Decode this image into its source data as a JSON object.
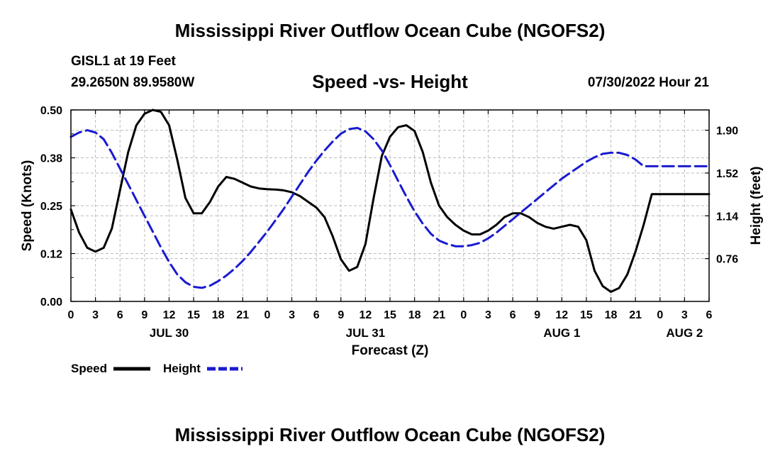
{
  "header": {
    "title": "Mississippi River Outflow Ocean Cube (NGOFS2)",
    "station": "GISL1 at 19 Feet",
    "coords": "29.2650N  89.9580W",
    "chart_title": "Speed -vs- Height",
    "datetime": "07/30/2022 Hour 21"
  },
  "footer": {
    "title": "Mississippi River Outflow Ocean Cube (NGOFS2)"
  },
  "colors": {
    "speed": "#000000",
    "height": "#1a1ad0",
    "grid": "#bbbbbb"
  },
  "chart_data": {
    "type": "line",
    "title": "Speed -vs- Height",
    "xlabel": "Forecast (Z)",
    "ylabel": "Speed (Knots)",
    "y2label": "Height (feet)",
    "x_unit": "hours since Jul 30 00Z",
    "xlim": [
      0,
      78
    ],
    "ylim": [
      0.0,
      0.5
    ],
    "y2lim": [
      0.38,
      2.08
    ],
    "xticks": [
      0,
      3,
      6,
      9,
      12,
      15,
      18,
      21,
      24,
      27,
      30,
      33,
      36,
      39,
      42,
      45,
      48,
      51,
      54,
      57,
      60,
      63,
      66,
      69,
      72,
      75,
      78
    ],
    "xtick_labels": [
      "0",
      "3",
      "6",
      "9",
      "12",
      "15",
      "18",
      "21",
      "0",
      "3",
      "6",
      "9",
      "12",
      "15",
      "18",
      "21",
      "0",
      "3",
      "6",
      "9",
      "12",
      "15",
      "18",
      "21",
      "0",
      "3",
      "6"
    ],
    "yticks": [
      0.0,
      0.125,
      0.25,
      0.375,
      0.5
    ],
    "ytick_labels": [
      "0.00",
      "0.12",
      "0.25",
      "0.38",
      "0.50"
    ],
    "y2ticks": [
      0.76,
      1.14,
      1.52,
      1.9
    ],
    "y2tick_labels": [
      "0.76",
      "1.14",
      "1.52",
      "1.90"
    ],
    "day_labels": [
      {
        "x": 12,
        "label": "JUL 30"
      },
      {
        "x": 36,
        "label": "JUL 31"
      },
      {
        "x": 60,
        "label": "AUG 1"
      },
      {
        "x": 75,
        "label": "AUG 2"
      }
    ],
    "legend": [
      "Speed",
      "Height"
    ],
    "series": [
      {
        "name": "Speed",
        "axis": "left",
        "style": "solid",
        "x": [
          0,
          1,
          2,
          3,
          4,
          5,
          6,
          7,
          8,
          9,
          10,
          11,
          12,
          13,
          14,
          15,
          16,
          17,
          18,
          19,
          20,
          21,
          22,
          23,
          24,
          25,
          26,
          27,
          28,
          29,
          30,
          31,
          32,
          33,
          34,
          35,
          36,
          37,
          38,
          39,
          40,
          41,
          42,
          43,
          44,
          45,
          46,
          47,
          48,
          49,
          50,
          51,
          52,
          53,
          54,
          55,
          56,
          57,
          58,
          59,
          60,
          61,
          62,
          63,
          64,
          65,
          66,
          67,
          68,
          69,
          70,
          71,
          72,
          73,
          74,
          75,
          76,
          77,
          78
        ],
        "values": [
          0.24,
          0.18,
          0.14,
          0.13,
          0.14,
          0.19,
          0.29,
          0.39,
          0.46,
          0.49,
          0.5,
          0.495,
          0.46,
          0.37,
          0.27,
          0.23,
          0.23,
          0.26,
          0.3,
          0.325,
          0.32,
          0.31,
          0.3,
          0.295,
          0.293,
          0.292,
          0.29,
          0.285,
          0.275,
          0.26,
          0.245,
          0.22,
          0.17,
          0.11,
          0.08,
          0.09,
          0.15,
          0.27,
          0.38,
          0.43,
          0.455,
          0.46,
          0.445,
          0.39,
          0.31,
          0.25,
          0.22,
          0.2,
          0.185,
          0.175,
          0.175,
          0.185,
          0.2,
          0.22,
          0.23,
          0.23,
          0.22,
          0.205,
          0.195,
          0.19,
          0.195,
          0.2,
          0.195,
          0.16,
          0.08,
          0.04,
          0.025,
          0.035,
          0.07,
          0.13,
          0.2,
          0.28,
          0.28,
          0.28,
          0.28,
          0.28,
          0.28,
          0.28,
          0.28
        ]
      },
      {
        "name": "Height",
        "axis": "right",
        "style": "dashed",
        "x": [
          0,
          1,
          2,
          3,
          4,
          5,
          6,
          7,
          8,
          9,
          10,
          11,
          12,
          13,
          14,
          15,
          16,
          17,
          18,
          19,
          20,
          21,
          22,
          23,
          24,
          25,
          26,
          27,
          28,
          29,
          30,
          31,
          32,
          33,
          34,
          35,
          36,
          37,
          38,
          39,
          40,
          41,
          42,
          43,
          44,
          45,
          46,
          47,
          48,
          49,
          50,
          51,
          52,
          53,
          54,
          55,
          56,
          57,
          58,
          59,
          60,
          61,
          62,
          63,
          64,
          65,
          66,
          67,
          68,
          69,
          70,
          71,
          72,
          73,
          74,
          75,
          76,
          77,
          78
        ],
        "values": [
          1.84,
          1.88,
          1.9,
          1.88,
          1.82,
          1.7,
          1.56,
          1.42,
          1.28,
          1.14,
          1.0,
          0.86,
          0.73,
          0.62,
          0.55,
          0.51,
          0.5,
          0.52,
          0.56,
          0.61,
          0.67,
          0.74,
          0.82,
          0.91,
          1.0,
          1.1,
          1.2,
          1.31,
          1.42,
          1.53,
          1.63,
          1.72,
          1.8,
          1.87,
          1.91,
          1.92,
          1.89,
          1.82,
          1.72,
          1.59,
          1.45,
          1.31,
          1.18,
          1.07,
          0.98,
          0.92,
          0.89,
          0.87,
          0.87,
          0.88,
          0.9,
          0.94,
          0.99,
          1.05,
          1.11,
          1.17,
          1.23,
          1.29,
          1.35,
          1.41,
          1.47,
          1.52,
          1.57,
          1.62,
          1.66,
          1.69,
          1.7,
          1.7,
          1.68,
          1.64,
          1.58,
          1.58,
          1.58,
          1.58,
          1.58,
          1.58,
          1.58,
          1.58,
          1.58
        ]
      }
    ]
  }
}
